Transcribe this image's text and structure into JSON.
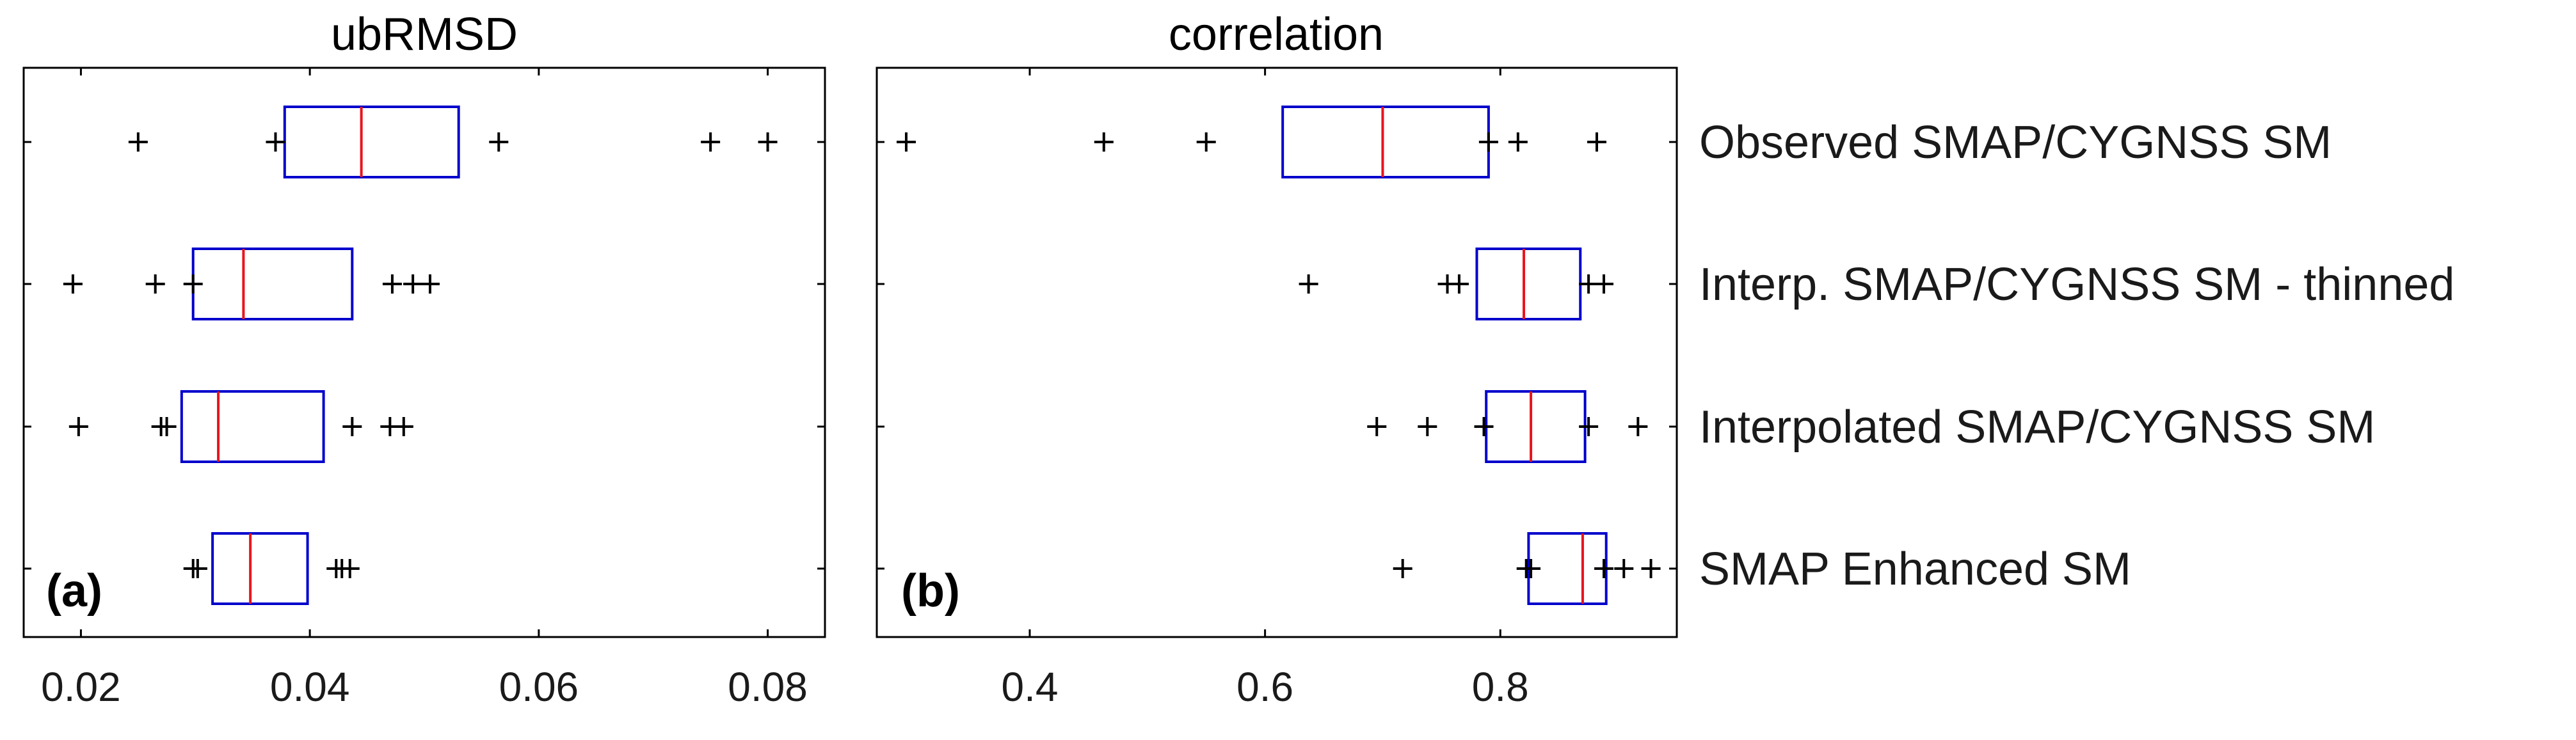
{
  "chart_data": {
    "type": "boxplot",
    "orientation": "horizontal",
    "categories": [
      "Observed SMAP/CYGNSS SM",
      "Interp. SMAP/CYGNSS SM - thinned",
      "Interpolated SMAP/CYGNSS SM",
      "SMAP Enhanced SM"
    ],
    "panels": [
      {
        "id": "a",
        "panel_label": "(a)",
        "title": "ubRMSD",
        "xlim": [
          0.015,
          0.085
        ],
        "xticks": [
          0.02,
          0.04,
          0.06,
          0.08
        ],
        "xtick_labels": [
          "0.02",
          "0.04",
          "0.06",
          "0.08"
        ],
        "boxes": [
          {
            "q1": 0.0378,
            "median": 0.0445,
            "q3": 0.053,
            "whisker_low": 0.0378,
            "whisker_high": 0.053,
            "outliers": [
              0.025,
              0.037,
              0.0565,
              0.075,
              0.08
            ]
          },
          {
            "q1": 0.0298,
            "median": 0.0342,
            "q3": 0.0437,
            "whisker_low": 0.0298,
            "whisker_high": 0.0437,
            "outliers": [
              0.0193,
              0.0265,
              0.0298,
              0.0472,
              0.049,
              0.0505
            ]
          },
          {
            "q1": 0.0288,
            "median": 0.032,
            "q3": 0.0412,
            "whisker_low": 0.0288,
            "whisker_high": 0.0412,
            "outliers": [
              0.0198,
              0.027,
              0.0275,
              0.0437,
              0.047,
              0.0482
            ]
          },
          {
            "q1": 0.0315,
            "median": 0.0348,
            "q3": 0.0398,
            "whisker_low": 0.0315,
            "whisker_high": 0.0398,
            "outliers": [
              0.0298,
              0.0302,
              0.0423,
              0.0428,
              0.0435
            ]
          }
        ]
      },
      {
        "id": "b",
        "panel_label": "(b)",
        "title": "correlation",
        "xlim": [
          0.27,
          0.95
        ],
        "xticks": [
          0.4,
          0.6,
          0.8
        ],
        "xtick_labels": [
          "0.4",
          "0.6",
          "0.8"
        ],
        "boxes": [
          {
            "q1": 0.615,
            "median": 0.7,
            "q3": 0.79,
            "whisker_low": 0.615,
            "whisker_high": 0.79,
            "outliers": [
              0.295,
              0.463,
              0.55,
              0.79,
              0.815,
              0.882
            ]
          },
          {
            "q1": 0.78,
            "median": 0.82,
            "q3": 0.868,
            "whisker_low": 0.78,
            "whisker_high": 0.868,
            "outliers": [
              0.637,
              0.755,
              0.765,
              0.875,
              0.888
            ]
          },
          {
            "q1": 0.788,
            "median": 0.826,
            "q3": 0.872,
            "whisker_low": 0.788,
            "whisker_high": 0.872,
            "outliers": [
              0.695,
              0.738,
              0.786,
              0.875,
              0.917
            ]
          },
          {
            "q1": 0.824,
            "median": 0.87,
            "q3": 0.89,
            "whisker_low": 0.824,
            "whisker_high": 0.89,
            "outliers": [
              0.717,
              0.822,
              0.826,
              0.888,
              0.905,
              0.928
            ]
          }
        ]
      }
    ],
    "colors": {
      "box": "#0000cc",
      "median": "#e8141e",
      "outlier": "#000000"
    }
  }
}
